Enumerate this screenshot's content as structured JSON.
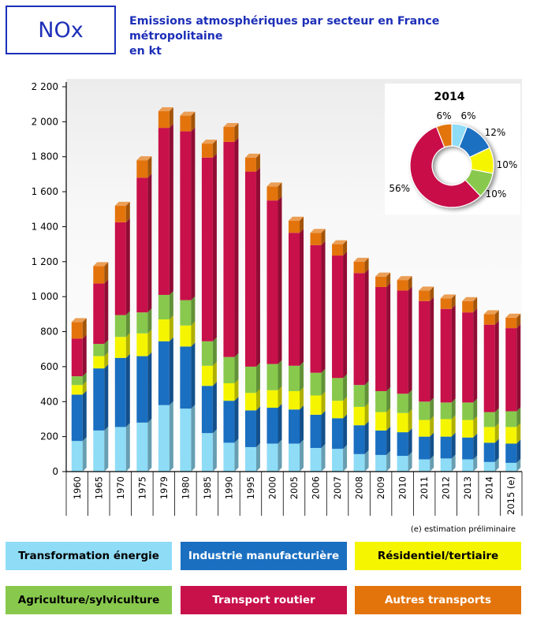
{
  "header": {
    "box_label": "NOx",
    "title_line1": "Emissions atmosphériques par secteur en France métropolitaine",
    "title_line2": "en kt"
  },
  "note": "(e) estimation préliminaire",
  "colors": {
    "transformation": "#8fdcf6",
    "industrie": "#1a6fc1",
    "residentiel": "#f5f500",
    "agriculture": "#88c94d",
    "transport_routier": "#c8104a",
    "autres_transports": "#e3740c"
  },
  "legend": [
    {
      "key": "transformation",
      "label": "Transformation énergie",
      "text_color": "#000000"
    },
    {
      "key": "industrie",
      "label": "Industrie manufacturière",
      "text_color": "#ffffff"
    },
    {
      "key": "residentiel",
      "label": "Résidentiel/tertiaire",
      "text_color": "#000000"
    },
    {
      "key": "agriculture",
      "label": "Agriculture/sylviculture",
      "text_color": "#000000"
    },
    {
      "key": "transport_routier",
      "label": "Transport routier",
      "text_color": "#ffffff"
    },
    {
      "key": "autres_transports",
      "label": "Autres transports",
      "text_color": "#ffffff"
    }
  ],
  "chart_data": [
    {
      "type": "bar",
      "stacked": true,
      "ylim": [
        0,
        2200
      ],
      "yticks": [
        "0",
        "200",
        "400",
        "600",
        "800",
        "1 000",
        "1 200",
        "1 400",
        "1 600",
        "1 800",
        "2 000",
        "2 200"
      ],
      "categories": [
        "1960",
        "1965",
        "1970",
        "1975",
        "1979",
        "1980",
        "1985",
        "1990",
        "1995",
        "2000",
        "2005",
        "2006",
        "2007",
        "2008",
        "2009",
        "2010",
        "2011",
        "2012",
        "2013",
        "2014",
        "2015 (e)"
      ],
      "series": [
        {
          "name": "Transformation énergie",
          "key": "transformation",
          "values": [
            175,
            235,
            255,
            280,
            380,
            360,
            220,
            165,
            140,
            160,
            160,
            135,
            130,
            100,
            95,
            90,
            70,
            75,
            70,
            55,
            50
          ]
        },
        {
          "name": "Industrie manufacturière",
          "key": "industrie",
          "values": [
            265,
            355,
            395,
            380,
            365,
            355,
            270,
            240,
            210,
            205,
            195,
            190,
            175,
            165,
            140,
            135,
            130,
            125,
            125,
            110,
            110
          ]
        },
        {
          "name": "Résidentiel/tertiaire",
          "key": "residentiel",
          "values": [
            55,
            70,
            120,
            130,
            125,
            120,
            115,
            100,
            100,
            100,
            105,
            110,
            100,
            105,
            105,
            110,
            95,
            100,
            100,
            90,
            95
          ]
        },
        {
          "name": "Agriculture/sylviculture",
          "key": "agriculture",
          "values": [
            50,
            70,
            125,
            120,
            140,
            145,
            140,
            150,
            150,
            150,
            145,
            130,
            130,
            125,
            120,
            110,
            105,
            95,
            100,
            85,
            90
          ]
        },
        {
          "name": "Transport routier",
          "key": "transport_routier",
          "values": [
            215,
            345,
            530,
            770,
            955,
            965,
            1050,
            1230,
            1115,
            935,
            760,
            730,
            700,
            640,
            595,
            590,
            575,
            535,
            515,
            500,
            475
          ]
        },
        {
          "name": "Autres transports",
          "key": "autres_transports",
          "values": [
            95,
            100,
            95,
            100,
            95,
            90,
            80,
            85,
            80,
            80,
            70,
            70,
            65,
            65,
            60,
            60,
            60,
            60,
            65,
            60,
            60
          ]
        }
      ]
    },
    {
      "type": "pie",
      "title": "2014",
      "series": [
        {
          "name": "Transformation énergie",
          "key": "transformation",
          "value": 6,
          "label": "6%"
        },
        {
          "name": "Industrie manufacturière",
          "key": "industrie",
          "value": 12,
          "label": "12%"
        },
        {
          "name": "Résidentiel/tertiaire",
          "key": "residentiel",
          "value": 10,
          "label": "10%"
        },
        {
          "name": "Agriculture/sylviculture",
          "key": "agriculture",
          "value": 10,
          "label": "10%"
        },
        {
          "name": "Transport routier",
          "key": "transport_routier",
          "value": 56,
          "label": "56%"
        },
        {
          "name": "Autres transports",
          "key": "autres_transports",
          "value": 6,
          "label": "6%"
        }
      ]
    }
  ]
}
